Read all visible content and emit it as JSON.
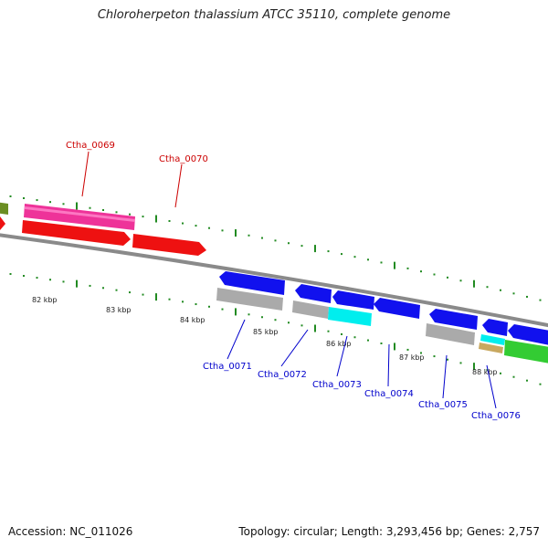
{
  "title": "Chloroherpeton thalassium ATCC 35110, complete genome",
  "footer": {
    "accession": "Accession: NC_011026",
    "topology": "Topology: circular; Length: 3,293,456 bp; Genes: 2,757"
  },
  "colors": {
    "background": "#ffffff",
    "backbone": "#888888",
    "tick": "#228b22",
    "label_top": "#cc0000",
    "label_bottom": "#0000cc",
    "gene_red": "#ee1111",
    "gene_pink": "#ee3399",
    "gene_blue": "#1111ee",
    "gene_gray": "#aaaaaa",
    "gene_cyan": "#00eeee",
    "gene_green": "#33cc33",
    "gene_olive": "#6b8e23",
    "gene_tan": "#c8a860"
  },
  "scale_labels": [
    "82 kbp",
    "83 kbp",
    "84 kbp",
    "85 kbp",
    "86 kbp",
    "87 kbp",
    "88 kbp"
  ],
  "genes_top": [
    "Ctha_0069",
    "Ctha_0070"
  ],
  "genes_bottom": [
    "Ctha_0071",
    "Ctha_0072",
    "Ctha_0073",
    "Ctha_0074",
    "Ctha_0075",
    "Ctha_0076"
  ]
}
